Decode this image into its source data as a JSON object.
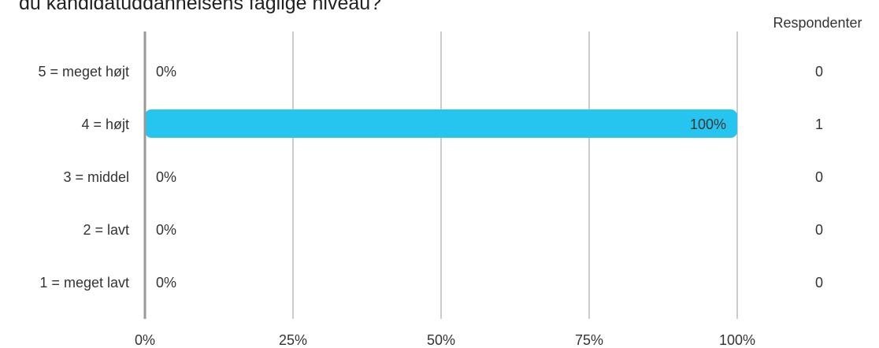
{
  "title": "du kandidatuddannelsens faglige niveau?",
  "respondents_header": "Respondenter",
  "colors": {
    "bar": "#25c5f0",
    "axis": "#999999",
    "grid": "#999999",
    "text": "#333333"
  },
  "chart_data": {
    "type": "bar",
    "orientation": "horizontal",
    "title": "du kandidatuddannelsens faglige niveau?",
    "categories": [
      "5 = meget højt",
      "4 = højt",
      "3 = middel",
      "2 = lavt",
      "1 = meget lavt"
    ],
    "values": [
      0,
      100,
      0,
      0,
      0
    ],
    "value_labels": [
      "0%",
      "100%",
      "0%",
      "0%",
      "0%"
    ],
    "respondents": [
      "0",
      "1",
      "0",
      "0",
      "0"
    ],
    "xlim": [
      0,
      100
    ],
    "xticks": [
      "0%",
      "25%",
      "50%",
      "75%",
      "100%"
    ],
    "xlabel": "",
    "ylabel": "",
    "grid": true
  }
}
